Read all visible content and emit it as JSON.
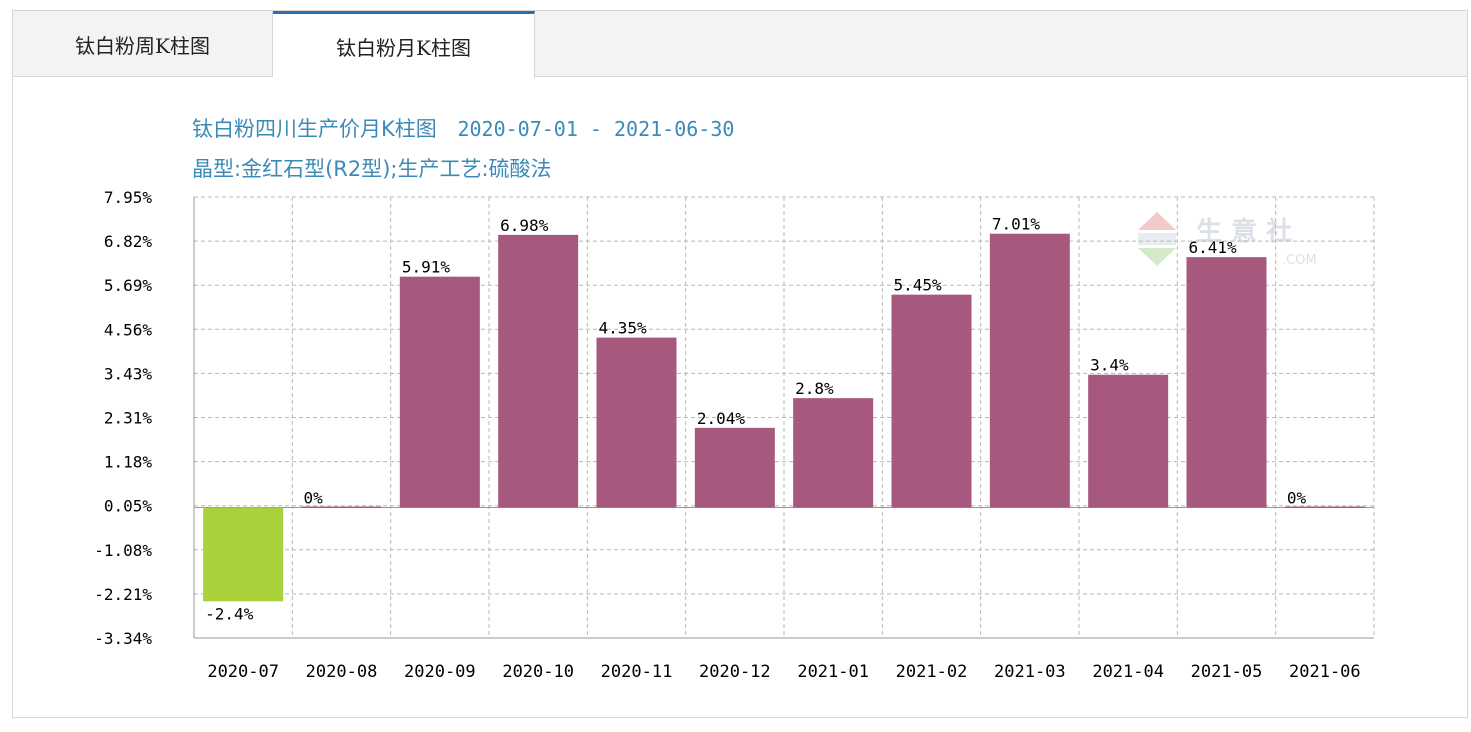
{
  "tabs": [
    {
      "label": "钛白粉周K柱图",
      "active": false
    },
    {
      "label": "钛白粉月K柱图",
      "active": true
    }
  ],
  "watermark": {
    "text": "生 意 社",
    "sub": ".COM"
  },
  "colors": {
    "positive": "#a6587e",
    "negative": "#a8d13a",
    "grid": "#b8b8b8",
    "axis": "#999999",
    "tab_accent": "#2a6fb0",
    "title": "#3b8bb8"
  },
  "chart_data": {
    "type": "bar",
    "title": "钛白粉四川生产价月K柱图",
    "date_range": "2020-07-01 - 2021-06-30",
    "subtitle": "晶型:金红石型(R2型);生产工艺:硫酸法",
    "categories": [
      "2020-07",
      "2020-08",
      "2020-09",
      "2020-10",
      "2020-11",
      "2020-12",
      "2021-01",
      "2021-02",
      "2021-03",
      "2021-04",
      "2021-05",
      "2021-06"
    ],
    "values": [
      -2.4,
      0,
      5.91,
      6.98,
      4.35,
      2.04,
      2.8,
      5.45,
      7.01,
      3.4,
      6.41,
      0
    ],
    "value_labels": [
      "-2.4%",
      "0%",
      "5.91%",
      "6.98%",
      "4.35%",
      "2.04%",
      "2.8%",
      "5.45%",
      "7.01%",
      "3.4%",
      "6.41%",
      "0%"
    ],
    "yticks": [
      "7.95%",
      "6.82%",
      "5.69%",
      "4.56%",
      "3.43%",
      "2.31%",
      "1.18%",
      "0.05%",
      "-1.08%",
      "-2.21%",
      "-3.34%"
    ],
    "ylim": [
      -3.34,
      7.95
    ],
    "grid": true,
    "unit": "%"
  }
}
